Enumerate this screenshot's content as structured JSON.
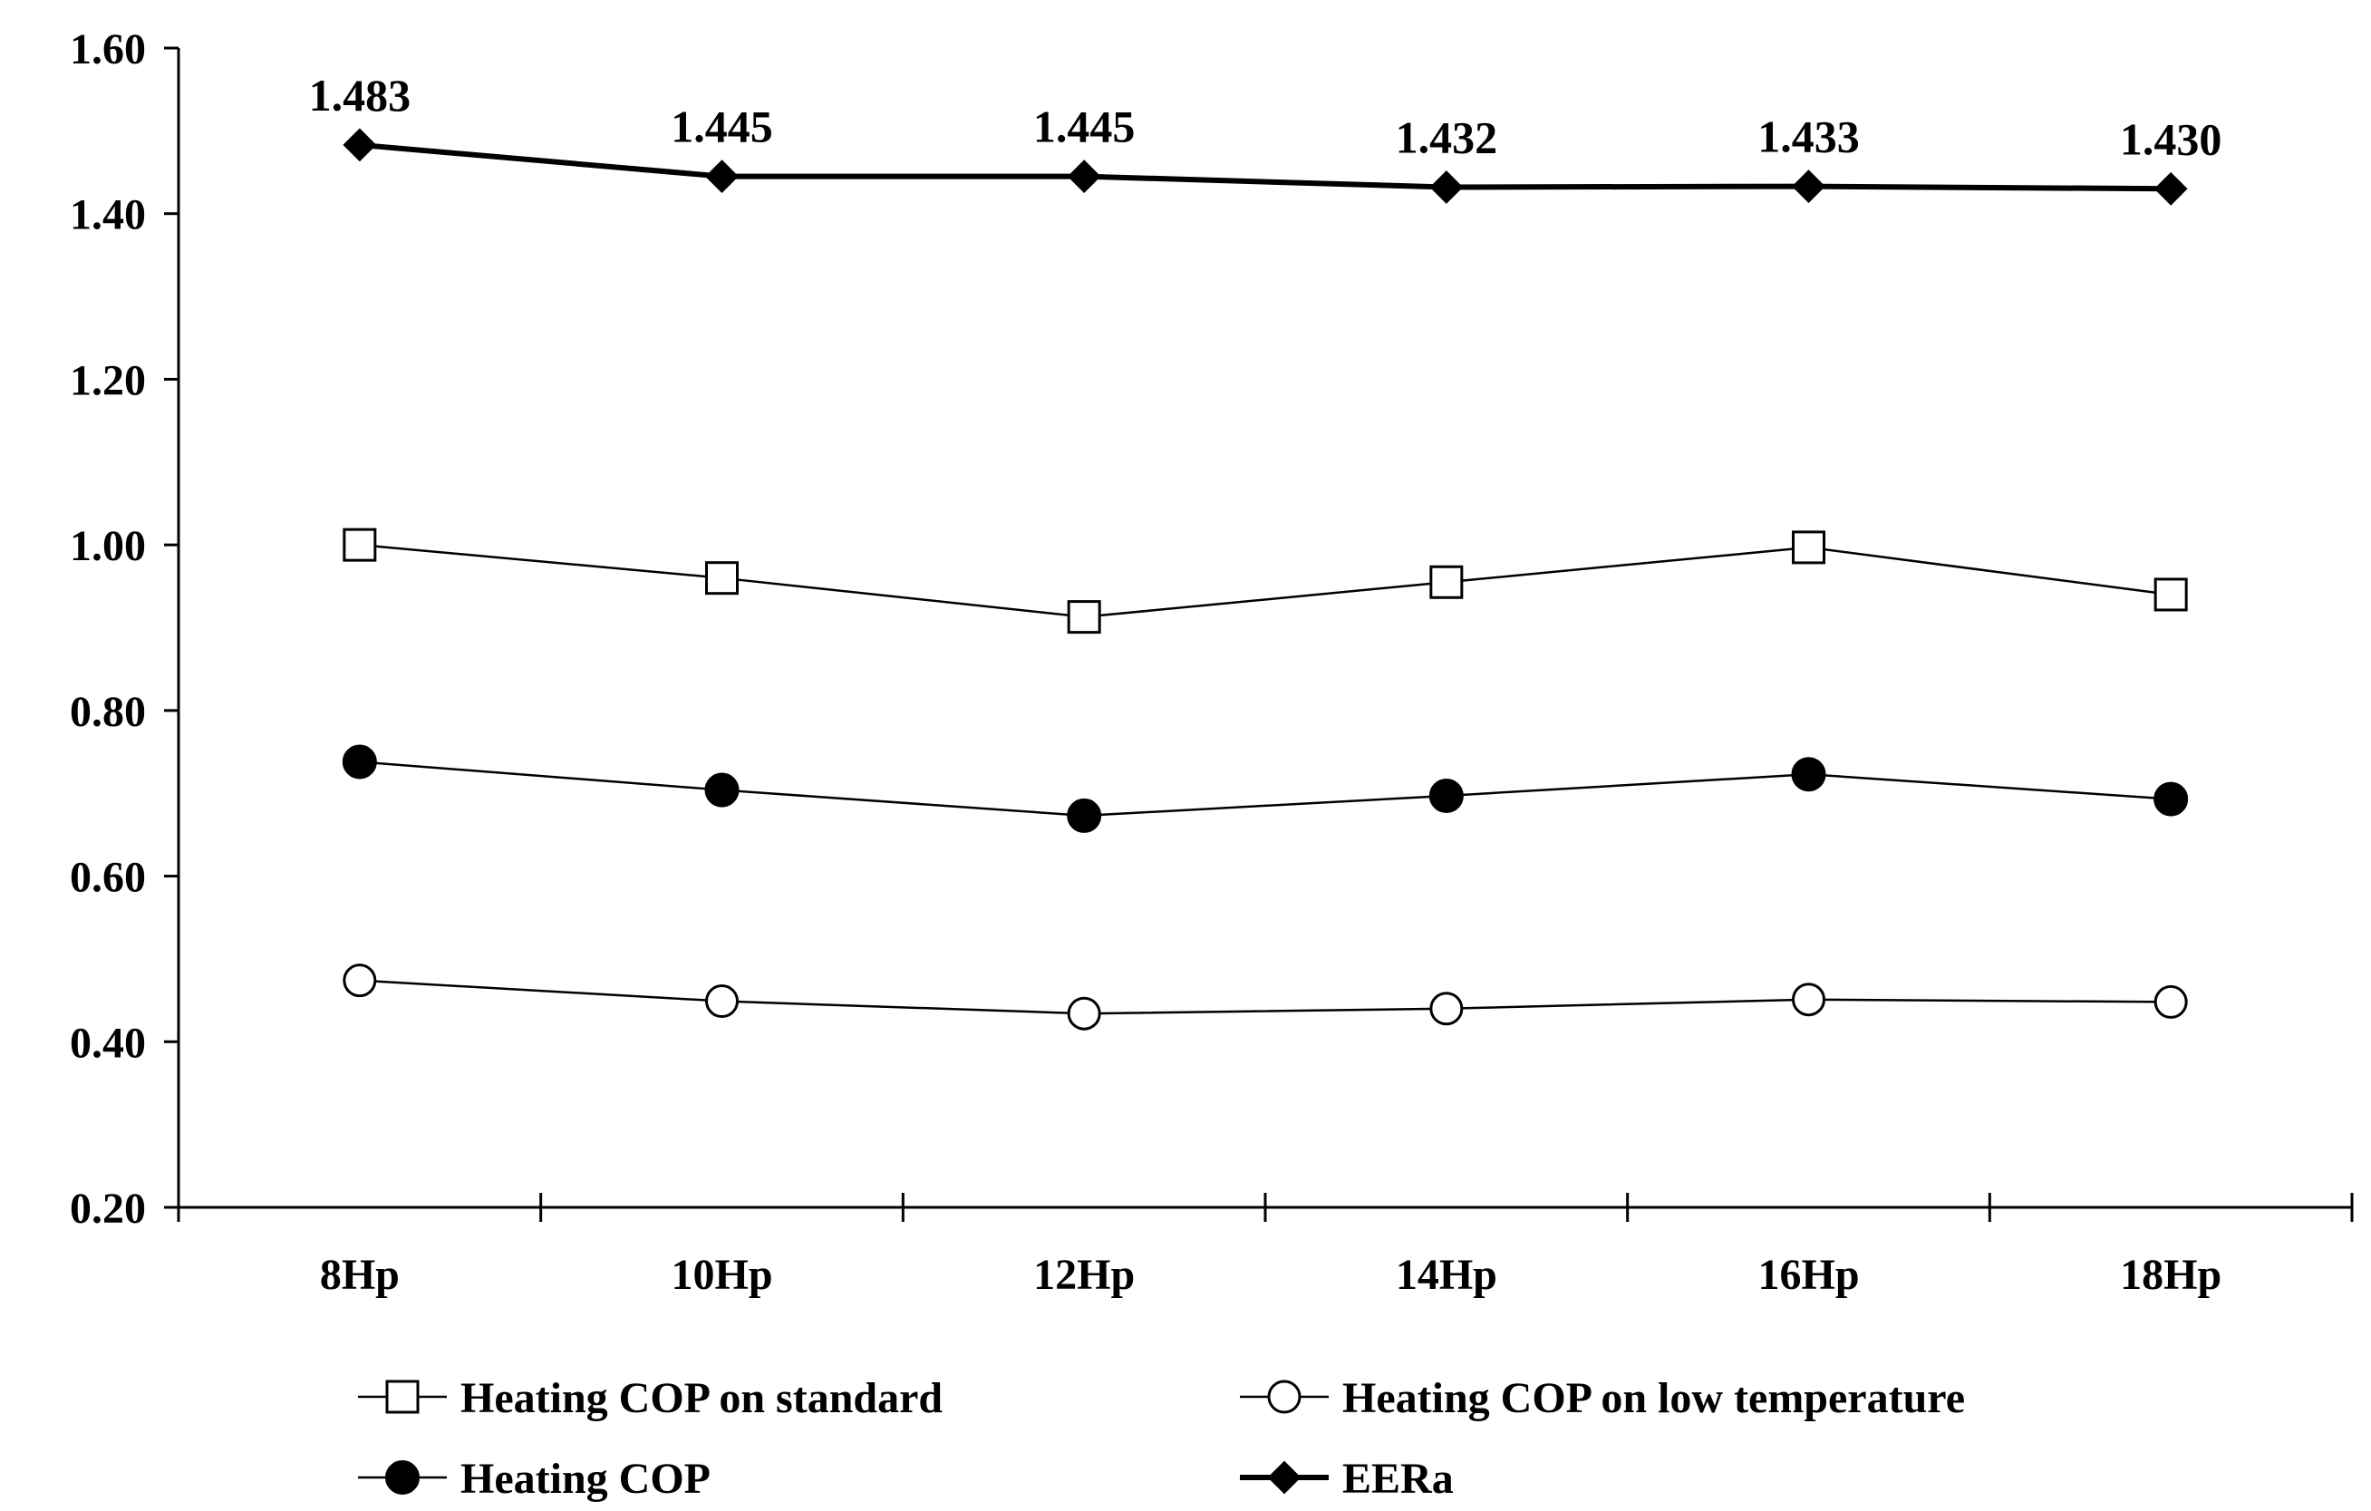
{
  "chart_data": {
    "type": "line",
    "categories": [
      "8Hp",
      "10Hp",
      "12Hp",
      "14Hp",
      "16Hp",
      "18Hp"
    ],
    "ylim": [
      0.2,
      1.6
    ],
    "yticks": [
      "0.20",
      "0.40",
      "0.60",
      "0.80",
      "1.00",
      "1.20",
      "1.40",
      "1.60"
    ],
    "grid": false,
    "legend_position": "bottom",
    "series": [
      {
        "name": "Heating COP on standard",
        "marker": "square-open",
        "values": [
          1.0,
          0.96,
          0.913,
          0.955,
          0.997,
          0.94
        ],
        "line_width": "thin"
      },
      {
        "name": "Heating COP on low temperature",
        "marker": "circle-open",
        "values": [
          0.474,
          0.449,
          0.434,
          0.44,
          0.451,
          0.448
        ],
        "line_width": "thin"
      },
      {
        "name": "Heating COP",
        "marker": "circle-filled",
        "values": [
          0.738,
          0.704,
          0.673,
          0.697,
          0.723,
          0.693
        ],
        "line_width": "thin"
      },
      {
        "name": "EERa",
        "marker": "diamond-filled",
        "values": [
          1.483,
          1.445,
          1.445,
          1.432,
          1.433,
          1.43
        ],
        "line_width": "thick",
        "data_labels": [
          "1.483",
          "1.445",
          "1.445",
          "1.432",
          "1.433",
          "1.430"
        ]
      }
    ],
    "colors": {
      "line": "#000000",
      "background": "#ffffff"
    }
  }
}
